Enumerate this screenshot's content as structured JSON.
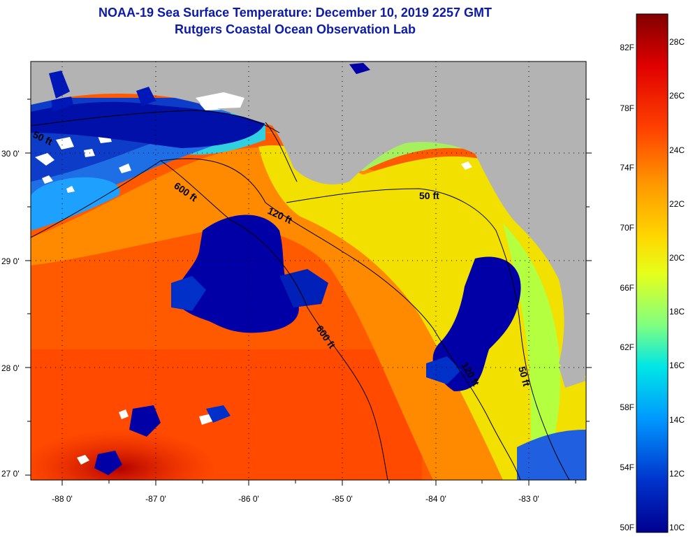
{
  "title": {
    "line1": "NOAA-19 Sea Surface Temperature:  December 10, 2019 2257 GMT",
    "line2": "Rutgers Coastal Ocean Observation Lab"
  },
  "map": {
    "lat_labels": [
      "30 0'",
      "29 0'",
      "28 0'",
      "27 0'"
    ],
    "lon_labels": [
      "-88 0'",
      "-87 0'",
      "-86 0'",
      "-85 0'",
      "-84 0'",
      "-83 0'"
    ],
    "contour_labels": [
      "50 ft",
      "600 ft",
      "120 ft",
      "50 ft",
      "600 ft",
      "120 ft",
      "50 ft"
    ],
    "colors": {
      "land": "#b3b3b3",
      "cold": "#0000a6",
      "cloud": "#ffffff"
    }
  },
  "colorbar": {
    "f_labels": [
      "82F",
      "78F",
      "74F",
      "70F",
      "66F",
      "62F",
      "58F",
      "54F",
      "50F"
    ],
    "c_labels": [
      "28C",
      "26C",
      "24C",
      "22C",
      "20C",
      "18C",
      "16C",
      "14C",
      "12C",
      "10C"
    ],
    "colors": [
      "#800000",
      "#e00000",
      "#ff4000",
      "#ff9900",
      "#ffd700",
      "#e6ff1a",
      "#80ff80",
      "#00e6e6",
      "#0099ff",
      "#0033cc",
      "#000090"
    ]
  }
}
